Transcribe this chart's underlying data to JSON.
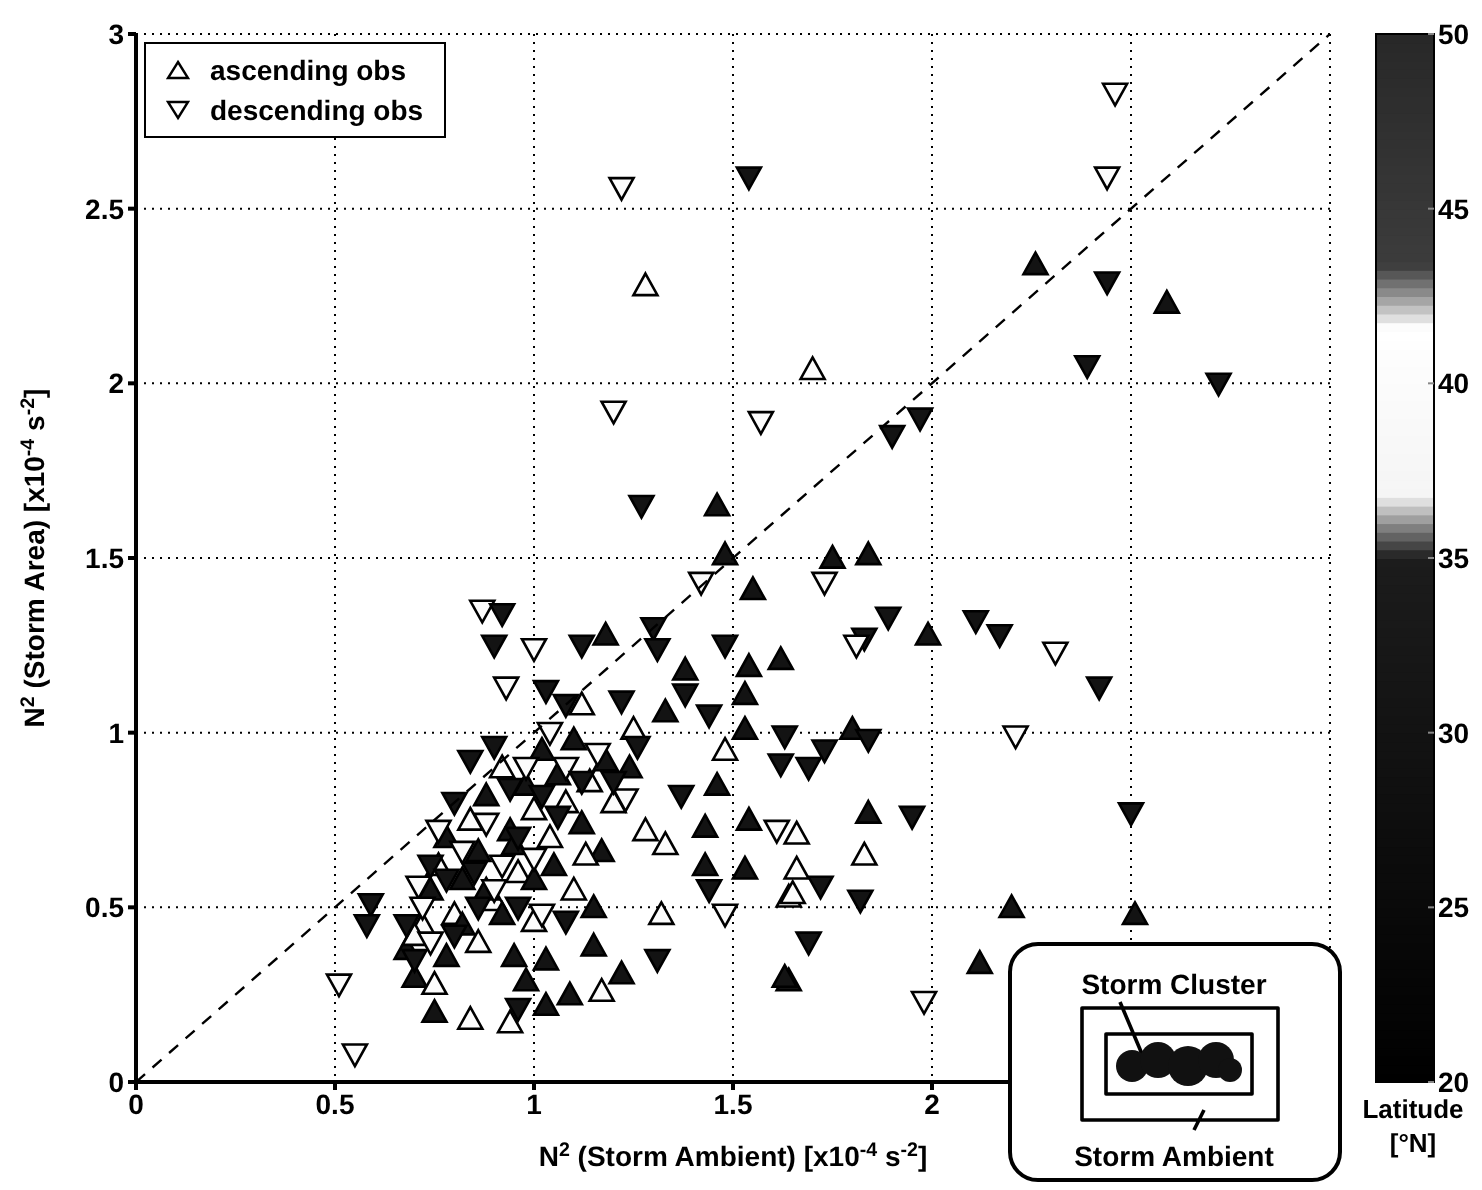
{
  "chart_data": {
    "type": "scatter",
    "xlabel": "N$^{2}$ (Storm Ambient) [x10$^{-4}$ s$^{-2}$]",
    "ylabel": "N$^{2}$ (Storm Area) [x10$^{-4}$ s$^{-2}$]",
    "clabel": "Latitude [°N]",
    "xlim": [
      0,
      3
    ],
    "ylim": [
      0,
      3
    ],
    "xticks": [
      0,
      0.5,
      1,
      1.5,
      2,
      {
        "value": 2.5,
        "label": null
      },
      {
        "value": 3,
        "label": null
      }
    ],
    "yticks": [
      0,
      0.5,
      1,
      1.5,
      2,
      2.5,
      3
    ],
    "clim": [
      20,
      50
    ],
    "cticks": [
      20,
      25,
      30,
      35,
      40,
      45,
      50
    ],
    "grid": true,
    "legend": "top left",
    "annotations": [
      "Storm Cluster",
      "Storm Ambient"
    ],
    "series": [
      {
        "name": "ascending obs",
        "type": "scatter",
        "marker": "triangle",
        "color": "#000000",
        "x": [
          1.28,
          1.7,
          2.26,
          2.59,
          1.46,
          1.48,
          1.75,
          1.84,
          1.55,
          1.99,
          1.8,
          1.62,
          1.84,
          1.83,
          1.66,
          1.66,
          1.64,
          2.2,
          2.51,
          2.12,
          1.64,
          1.54,
          1.53,
          1.38,
          1.33,
          1.18,
          1.12,
          1.25,
          1.53,
          1.46,
          1.48,
          1.54,
          1.43,
          1.33,
          1.17,
          1.43,
          1.32,
          1.53,
          1.65,
          1.63,
          1.22,
          1.15,
          1.17,
          1.09,
          1.03,
          0.94,
          0.84,
          0.75,
          1.03,
          0.95,
          0.98,
          1.15,
          1.0,
          1.13,
          0.68,
          0.7,
          0.72,
          0.74,
          0.76,
          0.78,
          0.8,
          0.82,
          0.84,
          0.86,
          0.88,
          0.9,
          0.92,
          0.94,
          0.96,
          0.98,
          1.0,
          1.02,
          1.04,
          1.06,
          1.08,
          1.1,
          1.12,
          1.14,
          1.18,
          1.2,
          1.24,
          1.28,
          0.7,
          0.75,
          0.78,
          0.82,
          0.86,
          0.88,
          0.92,
          0.95,
          1.0,
          1.05,
          1.1
        ],
        "values": [
          2.28,
          2.04,
          2.34,
          2.23,
          1.65,
          1.51,
          1.5,
          1.51,
          1.41,
          1.28,
          1.01,
          1.21,
          0.77,
          0.65,
          0.71,
          0.61,
          0.53,
          0.5,
          0.48,
          0.34,
          0.29,
          1.19,
          1.11,
          1.18,
          1.06,
          1.28,
          1.08,
          1.01,
          1.01,
          0.85,
          0.95,
          0.75,
          0.73,
          0.68,
          0.66,
          0.62,
          0.48,
          0.61,
          0.54,
          0.3,
          0.31,
          0.39,
          0.26,
          0.25,
          0.22,
          0.17,
          0.18,
          0.2,
          0.35,
          0.36,
          0.29,
          0.5,
          0.46,
          0.65,
          0.38,
          0.3,
          0.45,
          0.55,
          0.62,
          0.7,
          0.48,
          0.58,
          0.75,
          0.66,
          0.82,
          0.52,
          0.9,
          0.72,
          0.6,
          0.85,
          0.78,
          0.95,
          0.7,
          0.88,
          0.8,
          0.98,
          0.74,
          0.86,
          0.92,
          0.8,
          0.9,
          0.72,
          0.42,
          0.28,
          0.36,
          0.45,
          0.4,
          0.55,
          0.48,
          0.68,
          0.58,
          0.62,
          0.55
        ],
        "cvalues": [
          40,
          40,
          30,
          30,
          30,
          30,
          30,
          30,
          30,
          30,
          30,
          30,
          30,
          40,
          40,
          40,
          40,
          30,
          30,
          30,
          30,
          30,
          30,
          30,
          30,
          30,
          40,
          40,
          30,
          30,
          40,
          30,
          30,
          40,
          30,
          30,
          40,
          30,
          40,
          30,
          30,
          30,
          40,
          30,
          30,
          40,
          40,
          30,
          30,
          30,
          30,
          30,
          40,
          40,
          30,
          30,
          40,
          30,
          40,
          30,
          40,
          30,
          40,
          30,
          30,
          40,
          40,
          30,
          40,
          30,
          40,
          30,
          40,
          30,
          40,
          30,
          30,
          40,
          30,
          40,
          30,
          40,
          40,
          40,
          30,
          30,
          40,
          30,
          30,
          30,
          30,
          30,
          40
        ]
      },
      {
        "name": "descending obs",
        "type": "scatter",
        "marker": "triangle-down",
        "color": "#000000",
        "x": [
          1.22,
          1.54,
          2.46,
          2.44,
          2.44,
          2.39,
          2.72,
          1.97,
          1.9,
          1.2,
          1.57,
          1.27,
          1.42,
          1.73,
          0.87,
          0.92,
          0.9,
          1.0,
          1.12,
          1.3,
          1.31,
          0.93,
          1.03,
          1.08,
          1.22,
          1.48,
          1.38,
          1.44,
          1.63,
          1.62,
          1.37,
          1.61,
          1.23,
          0.59,
          0.58,
          0.51,
          0.55,
          1.31,
          0.96,
          1.48,
          1.44,
          0.71,
          1.89,
          1.83,
          1.81,
          2.11,
          2.17,
          2.31,
          2.42,
          2.21,
          1.84,
          1.69,
          1.73,
          1.95,
          2.5,
          1.72,
          1.82,
          1.69,
          1.98,
          0.68,
          0.72,
          0.74,
          0.76,
          0.78,
          0.8,
          0.82,
          0.84,
          0.86,
          0.88,
          0.9,
          0.92,
          0.94,
          0.96,
          0.98,
          1.0,
          1.02,
          1.04,
          1.06,
          1.08,
          1.12,
          1.16,
          1.2,
          1.26,
          0.7,
          0.74,
          0.8,
          0.85,
          0.9,
          0.96,
          1.02,
          1.08
        ],
        "values": [
          2.56,
          2.59,
          2.83,
          2.59,
          2.29,
          2.05,
          2.0,
          1.9,
          1.85,
          1.92,
          1.89,
          1.65,
          1.43,
          1.43,
          1.35,
          1.34,
          1.25,
          1.24,
          1.25,
          1.3,
          1.24,
          1.13,
          1.12,
          1.08,
          1.09,
          1.25,
          1.11,
          1.05,
          0.99,
          0.91,
          0.82,
          0.72,
          0.81,
          0.51,
          0.45,
          0.28,
          0.08,
          0.35,
          0.21,
          0.48,
          0.55,
          0.56,
          1.33,
          1.27,
          1.25,
          1.32,
          1.28,
          1.23,
          1.13,
          0.99,
          0.98,
          0.9,
          0.95,
          0.76,
          0.77,
          0.56,
          0.52,
          0.4,
          0.23,
          0.45,
          0.5,
          0.62,
          0.72,
          0.58,
          0.8,
          0.66,
          0.92,
          0.5,
          0.74,
          0.96,
          0.62,
          0.84,
          0.7,
          0.9,
          0.64,
          0.82,
          1.0,
          0.76,
          0.9,
          0.86,
          0.94,
          0.86,
          0.96,
          0.35,
          0.4,
          0.42,
          0.6,
          0.55,
          0.5,
          0.48,
          0.46
        ],
        "cvalues": [
          40,
          30,
          40,
          40,
          30,
          30,
          30,
          30,
          30,
          40,
          40,
          30,
          40,
          40,
          40,
          30,
          30,
          40,
          30,
          30,
          30,
          40,
          30,
          30,
          30,
          30,
          30,
          30,
          30,
          30,
          30,
          40,
          40,
          30,
          30,
          40,
          40,
          30,
          30,
          40,
          30,
          40,
          30,
          30,
          40,
          30,
          30,
          40,
          30,
          40,
          30,
          30,
          30,
          30,
          30,
          30,
          30,
          30,
          40,
          30,
          40,
          30,
          40,
          30,
          30,
          40,
          30,
          30,
          40,
          30,
          40,
          30,
          30,
          40,
          40,
          30,
          40,
          30,
          40,
          30,
          40,
          30,
          30,
          30,
          40,
          30,
          30,
          40,
          30,
          40,
          30
        ]
      },
      {
        "type": "line",
        "line_style": "dashed",
        "color": "#000000",
        "x": [
          0,
          3
        ],
        "values": [
          0,
          3
        ]
      }
    ]
  }
}
